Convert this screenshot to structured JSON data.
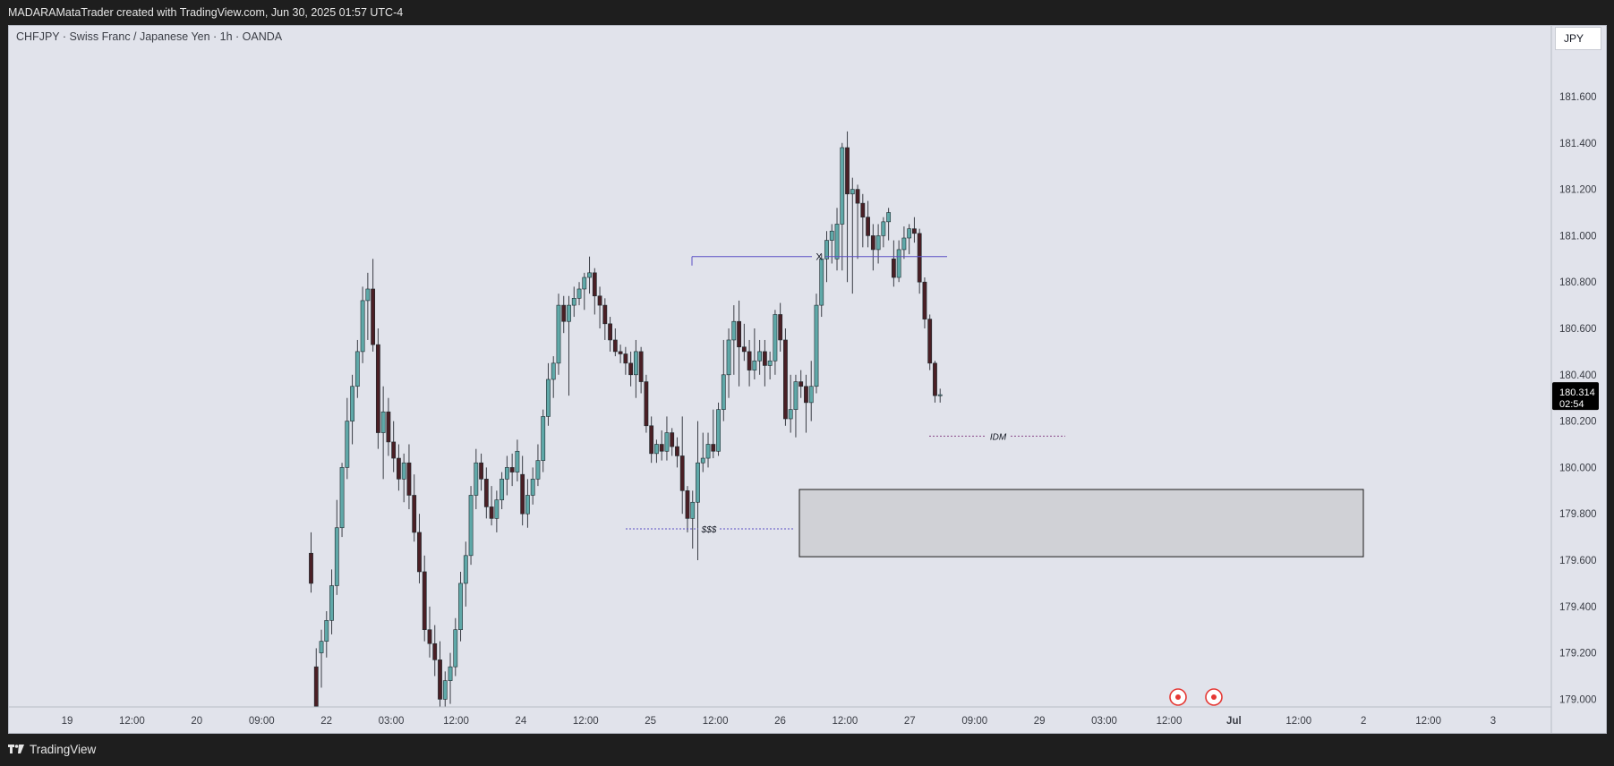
{
  "header": {
    "attribution": "MADARAMataTrader created with TradingView.com, Jun 30, 2025 01:57 UTC-4"
  },
  "symbol_info": "CHFJPY · Swiss Franc / Japanese Yen · 1h · OANDA",
  "currency_label": "JPY",
  "footer": {
    "brand": "TradingView"
  },
  "colors": {
    "background": "#e1e3eb",
    "bull_fill": "#5fa8a8",
    "bear_fill": "#4a1f25",
    "wick": "#3a3d45",
    "zone_fill": "#d0d1d6",
    "level_line": "#5b4fc4",
    "event_marker": "#e53935",
    "price_label_bg": "#000000"
  },
  "chart_data": {
    "type": "candlestick",
    "ylim": [
      178.93,
      181.87
    ],
    "y_ticks": [
      "181.600",
      "181.400",
      "181.200",
      "181.000",
      "180.800",
      "180.600",
      "180.400",
      "180.200",
      "180.000",
      "179.800",
      "179.600",
      "179.400",
      "179.200",
      "179.000"
    ],
    "x_ticks": [
      "19",
      "12:00",
      "20",
      "09:00",
      "22",
      "03:00",
      "12:00",
      "24",
      "12:00",
      "25",
      "12:00",
      "26",
      "12:00",
      "27",
      "09:00",
      "29",
      "03:00",
      "12:00",
      "Jul",
      "12:00",
      "2",
      "12:00",
      "3"
    ],
    "last_price": {
      "price": "180.314",
      "countdown": "02:54"
    },
    "candles": [
      {
        "o": 179.63,
        "h": 179.72,
        "l": 179.46,
        "c": 179.5
      },
      {
        "o": 179.14,
        "h": 179.22,
        "l": 178.93,
        "c": 178.97
      },
      {
        "o": 179.2,
        "h": 179.3,
        "l": 179.05,
        "c": 179.25
      },
      {
        "o": 179.25,
        "h": 179.38,
        "l": 179.18,
        "c": 179.34
      },
      {
        "o": 179.34,
        "h": 179.56,
        "l": 179.28,
        "c": 179.49
      },
      {
        "o": 179.49,
        "h": 179.86,
        "l": 179.45,
        "c": 179.74
      },
      {
        "o": 179.74,
        "h": 180.02,
        "l": 179.7,
        "c": 180.0
      },
      {
        "o": 180.0,
        "h": 180.3,
        "l": 179.95,
        "c": 180.2
      },
      {
        "o": 180.2,
        "h": 180.4,
        "l": 180.1,
        "c": 180.35
      },
      {
        "o": 180.35,
        "h": 180.55,
        "l": 180.3,
        "c": 180.5
      },
      {
        "o": 180.5,
        "h": 180.78,
        "l": 180.45,
        "c": 180.72
      },
      {
        "o": 180.72,
        "h": 180.84,
        "l": 180.55,
        "c": 180.77
      },
      {
        "o": 180.77,
        "h": 180.9,
        "l": 180.5,
        "c": 180.53
      },
      {
        "o": 180.53,
        "h": 180.6,
        "l": 180.08,
        "c": 180.15
      },
      {
        "o": 180.15,
        "h": 180.35,
        "l": 179.95,
        "c": 180.24
      },
      {
        "o": 180.24,
        "h": 180.3,
        "l": 180.05,
        "c": 180.11
      },
      {
        "o": 180.11,
        "h": 180.2,
        "l": 179.98,
        "c": 180.04
      },
      {
        "o": 180.04,
        "h": 180.1,
        "l": 179.9,
        "c": 179.95
      },
      {
        "o": 179.95,
        "h": 180.06,
        "l": 179.85,
        "c": 180.02
      },
      {
        "o": 180.02,
        "h": 180.1,
        "l": 179.82,
        "c": 179.88
      },
      {
        "o": 179.88,
        "h": 179.97,
        "l": 179.68,
        "c": 179.72
      },
      {
        "o": 179.72,
        "h": 179.8,
        "l": 179.5,
        "c": 179.55
      },
      {
        "o": 179.55,
        "h": 179.62,
        "l": 179.25,
        "c": 179.3
      },
      {
        "o": 179.3,
        "h": 179.4,
        "l": 179.18,
        "c": 179.24
      },
      {
        "o": 179.24,
        "h": 179.32,
        "l": 179.1,
        "c": 179.17
      },
      {
        "o": 179.17,
        "h": 179.25,
        "l": 178.95,
        "c": 179.0
      },
      {
        "o": 179.0,
        "h": 179.12,
        "l": 178.93,
        "c": 179.08
      },
      {
        "o": 179.08,
        "h": 179.2,
        "l": 178.98,
        "c": 179.14
      },
      {
        "o": 179.14,
        "h": 179.35,
        "l": 179.1,
        "c": 179.3
      },
      {
        "o": 179.3,
        "h": 179.55,
        "l": 179.25,
        "c": 179.5
      },
      {
        "o": 179.5,
        "h": 179.68,
        "l": 179.4,
        "c": 179.62
      },
      {
        "o": 179.62,
        "h": 179.92,
        "l": 179.58,
        "c": 179.88
      },
      {
        "o": 179.88,
        "h": 180.08,
        "l": 179.82,
        "c": 180.02
      },
      {
        "o": 180.02,
        "h": 180.06,
        "l": 179.9,
        "c": 179.95
      },
      {
        "o": 179.95,
        "h": 180.0,
        "l": 179.78,
        "c": 179.83
      },
      {
        "o": 179.83,
        "h": 179.92,
        "l": 179.75,
        "c": 179.78
      },
      {
        "o": 179.78,
        "h": 179.9,
        "l": 179.72,
        "c": 179.86
      },
      {
        "o": 179.86,
        "h": 179.98,
        "l": 179.82,
        "c": 179.95
      },
      {
        "o": 179.95,
        "h": 180.05,
        "l": 179.88,
        "c": 180.0
      },
      {
        "o": 180.0,
        "h": 180.06,
        "l": 179.92,
        "c": 179.98
      },
      {
        "o": 179.98,
        "h": 180.12,
        "l": 179.94,
        "c": 180.07
      },
      {
        "o": 179.97,
        "h": 180.05,
        "l": 179.75,
        "c": 179.8
      },
      {
        "o": 179.8,
        "h": 179.95,
        "l": 179.74,
        "c": 179.88
      },
      {
        "o": 179.88,
        "h": 180.0,
        "l": 179.84,
        "c": 179.95
      },
      {
        "o": 179.95,
        "h": 180.1,
        "l": 179.92,
        "c": 180.03
      },
      {
        "o": 180.03,
        "h": 180.25,
        "l": 179.98,
        "c": 180.22
      },
      {
        "o": 180.22,
        "h": 180.45,
        "l": 180.18,
        "c": 180.38
      },
      {
        "o": 180.38,
        "h": 180.48,
        "l": 180.3,
        "c": 180.45
      },
      {
        "o": 180.45,
        "h": 180.75,
        "l": 180.4,
        "c": 180.7
      },
      {
        "o": 180.7,
        "h": 180.74,
        "l": 180.58,
        "c": 180.63
      },
      {
        "o": 180.63,
        "h": 180.74,
        "l": 180.31,
        "c": 180.7
      },
      {
        "o": 180.7,
        "h": 180.78,
        "l": 180.65,
        "c": 180.73
      },
      {
        "o": 180.73,
        "h": 180.8,
        "l": 180.7,
        "c": 180.77
      },
      {
        "o": 180.77,
        "h": 180.84,
        "l": 180.68,
        "c": 180.82
      },
      {
        "o": 180.82,
        "h": 180.91,
        "l": 180.75,
        "c": 180.84
      },
      {
        "o": 180.84,
        "h": 180.86,
        "l": 180.66,
        "c": 180.74
      },
      {
        "o": 180.74,
        "h": 180.78,
        "l": 180.6,
        "c": 180.7
      },
      {
        "o": 180.7,
        "h": 180.73,
        "l": 180.55,
        "c": 180.62
      },
      {
        "o": 180.62,
        "h": 180.65,
        "l": 180.5,
        "c": 180.55
      },
      {
        "o": 180.55,
        "h": 180.6,
        "l": 180.48,
        "c": 180.5
      },
      {
        "o": 180.5,
        "h": 180.53,
        "l": 180.45,
        "c": 180.49
      },
      {
        "o": 180.49,
        "h": 180.52,
        "l": 180.4,
        "c": 180.45
      },
      {
        "o": 180.45,
        "h": 180.5,
        "l": 180.35,
        "c": 180.4
      },
      {
        "o": 180.4,
        "h": 180.55,
        "l": 180.3,
        "c": 180.5
      },
      {
        "o": 180.5,
        "h": 180.52,
        "l": 180.32,
        "c": 180.37
      },
      {
        "o": 180.37,
        "h": 180.4,
        "l": 180.15,
        "c": 180.18
      },
      {
        "o": 180.18,
        "h": 180.22,
        "l": 180.02,
        "c": 180.06
      },
      {
        "o": 180.06,
        "h": 180.12,
        "l": 180.02,
        "c": 180.1
      },
      {
        "o": 180.1,
        "h": 180.16,
        "l": 180.03,
        "c": 180.07
      },
      {
        "o": 180.07,
        "h": 180.22,
        "l": 180.03,
        "c": 180.15
      },
      {
        "o": 180.15,
        "h": 180.17,
        "l": 180.05,
        "c": 180.09
      },
      {
        "o": 180.09,
        "h": 180.13,
        "l": 180.0,
        "c": 180.05
      },
      {
        "o": 180.05,
        "h": 180.22,
        "l": 179.8,
        "c": 179.9
      },
      {
        "o": 179.9,
        "h": 179.92,
        "l": 179.72,
        "c": 179.78
      },
      {
        "o": 179.78,
        "h": 179.9,
        "l": 179.65,
        "c": 179.85
      },
      {
        "o": 179.85,
        "h": 180.2,
        "l": 179.6,
        "c": 180.02
      },
      {
        "o": 180.02,
        "h": 180.15,
        "l": 179.98,
        "c": 180.04
      },
      {
        "o": 180.04,
        "h": 180.15,
        "l": 180.0,
        "c": 180.1
      },
      {
        "o": 180.1,
        "h": 180.25,
        "l": 180.04,
        "c": 180.07
      },
      {
        "o": 180.07,
        "h": 180.28,
        "l": 180.05,
        "c": 180.25
      },
      {
        "o": 180.25,
        "h": 180.55,
        "l": 180.2,
        "c": 180.4
      },
      {
        "o": 180.4,
        "h": 180.6,
        "l": 180.3,
        "c": 180.55
      },
      {
        "o": 180.55,
        "h": 180.7,
        "l": 180.4,
        "c": 180.63
      },
      {
        "o": 180.63,
        "h": 180.72,
        "l": 180.35,
        "c": 180.52
      },
      {
        "o": 180.52,
        "h": 180.62,
        "l": 180.46,
        "c": 180.5
      },
      {
        "o": 180.5,
        "h": 180.55,
        "l": 180.35,
        "c": 180.42
      },
      {
        "o": 180.42,
        "h": 180.6,
        "l": 180.38,
        "c": 180.46
      },
      {
        "o": 180.46,
        "h": 180.55,
        "l": 180.4,
        "c": 180.5
      },
      {
        "o": 180.5,
        "h": 180.55,
        "l": 180.35,
        "c": 180.44
      },
      {
        "o": 180.44,
        "h": 180.5,
        "l": 180.38,
        "c": 180.46
      },
      {
        "o": 180.46,
        "h": 180.68,
        "l": 180.4,
        "c": 180.66
      },
      {
        "o": 180.66,
        "h": 180.71,
        "l": 180.5,
        "c": 180.55
      },
      {
        "o": 180.55,
        "h": 180.6,
        "l": 180.18,
        "c": 180.21
      },
      {
        "o": 180.21,
        "h": 180.4,
        "l": 180.15,
        "c": 180.25
      },
      {
        "o": 180.25,
        "h": 180.4,
        "l": 180.13,
        "c": 180.37
      },
      {
        "o": 180.37,
        "h": 180.42,
        "l": 180.3,
        "c": 180.35
      },
      {
        "o": 180.35,
        "h": 180.4,
        "l": 180.15,
        "c": 180.28
      },
      {
        "o": 180.28,
        "h": 180.46,
        "l": 180.2,
        "c": 180.35
      },
      {
        "o": 180.35,
        "h": 180.75,
        "l": 180.32,
        "c": 180.7
      },
      {
        "o": 180.7,
        "h": 180.92,
        "l": 180.65,
        "c": 180.9
      },
      {
        "o": 180.9,
        "h": 181.02,
        "l": 180.8,
        "c": 180.98
      },
      {
        "o": 180.98,
        "h": 181.05,
        "l": 180.88,
        "c": 181.02
      },
      {
        "o": 180.9,
        "h": 181.12,
        "l": 180.85,
        "c": 181.05
      },
      {
        "o": 181.05,
        "h": 181.4,
        "l": 180.85,
        "c": 181.38
      },
      {
        "o": 181.38,
        "h": 181.45,
        "l": 180.8,
        "c": 181.18
      },
      {
        "o": 181.18,
        "h": 181.25,
        "l": 180.75,
        "c": 181.2
      },
      {
        "o": 181.2,
        "h": 181.22,
        "l": 180.9,
        "c": 181.14
      },
      {
        "o": 181.14,
        "h": 181.18,
        "l": 180.95,
        "c": 181.08
      },
      {
        "o": 181.08,
        "h": 181.15,
        "l": 180.95,
        "c": 181.0
      },
      {
        "o": 181.0,
        "h": 181.05,
        "l": 180.85,
        "c": 180.94
      },
      {
        "o": 180.94,
        "h": 181.05,
        "l": 180.88,
        "c": 181.0
      },
      {
        "o": 181.0,
        "h": 181.08,
        "l": 180.95,
        "c": 181.06
      },
      {
        "o": 181.06,
        "h": 181.12,
        "l": 180.98,
        "c": 181.1
      },
      {
        "o": 180.9,
        "h": 180.98,
        "l": 180.78,
        "c": 180.82
      },
      {
        "o": 180.82,
        "h": 180.98,
        "l": 180.8,
        "c": 180.94
      },
      {
        "o": 180.94,
        "h": 181.04,
        "l": 180.9,
        "c": 180.99
      },
      {
        "o": 180.99,
        "h": 181.05,
        "l": 180.92,
        "c": 181.03
      },
      {
        "o": 181.03,
        "h": 181.08,
        "l": 180.97,
        "c": 181.01
      },
      {
        "o": 181.01,
        "h": 181.03,
        "l": 180.75,
        "c": 180.8
      },
      {
        "o": 180.8,
        "h": 180.82,
        "l": 180.6,
        "c": 180.64
      },
      {
        "o": 180.64,
        "h": 180.66,
        "l": 180.42,
        "c": 180.45
      },
      {
        "o": 180.45,
        "h": 180.46,
        "l": 180.28,
        "c": 180.31
      },
      {
        "o": 180.31,
        "h": 180.34,
        "l": 180.28,
        "c": 180.314
      }
    ]
  },
  "annotations": {
    "x_label": "X",
    "idm_label": "IDM",
    "liquidity_label": "$$$",
    "levels": {
      "x_line": 180.91,
      "idm_line": 180.135,
      "liquidity_line": 179.735
    },
    "zone": {
      "top": 179.905,
      "bottom": 179.615
    },
    "event_markers": 2
  }
}
